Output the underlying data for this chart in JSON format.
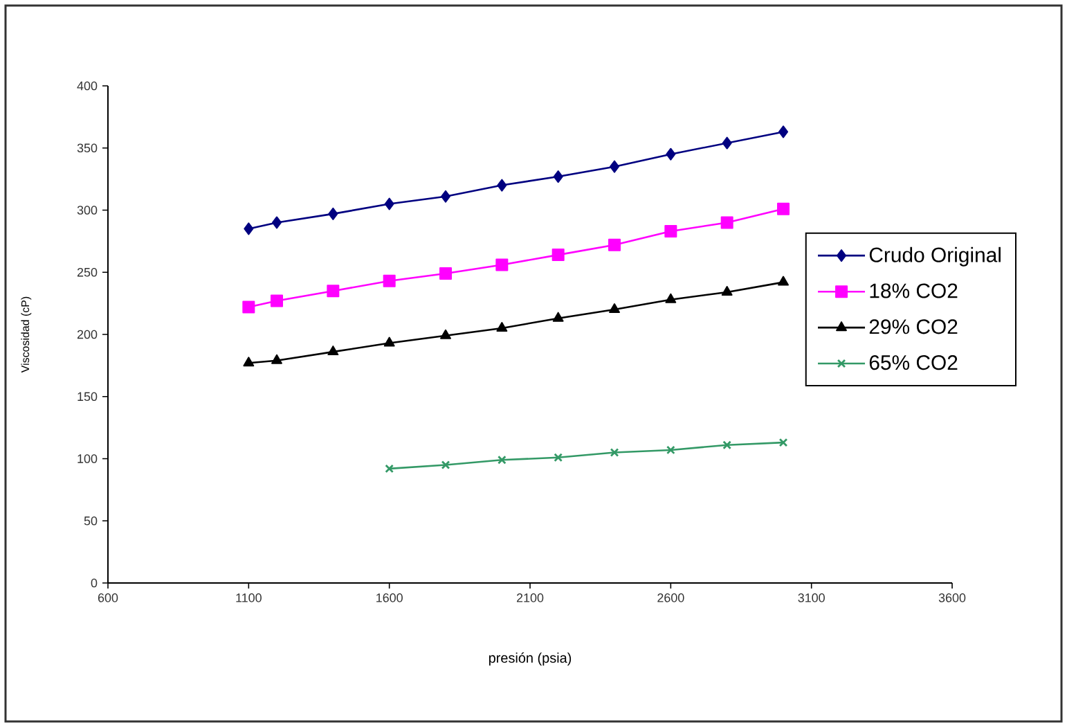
{
  "chart_data": {
    "type": "line",
    "xlabel": "presión (psia)",
    "ylabel": "Viscosidad (cP)",
    "xlim": [
      600,
      3600
    ],
    "xticks": [
      600,
      1100,
      1600,
      2100,
      2600,
      3100,
      3600
    ],
    "ylim": [
      0,
      400
    ],
    "yticks": [
      0,
      50,
      100,
      150,
      200,
      250,
      300,
      350,
      400
    ],
    "grid": false,
    "legend": "right",
    "series": [
      {
        "name": "Crudo Original",
        "color": "#000080",
        "marker": "diamond",
        "x": [
          1100,
          1200,
          1400,
          1600,
          1800,
          2000,
          2200,
          2400,
          2600,
          2800,
          3000
        ],
        "values": [
          285,
          290,
          297,
          305,
          311,
          320,
          327,
          335,
          345,
          354,
          363
        ]
      },
      {
        "name": "18% CO2",
        "color": "#ff00ff",
        "marker": "square",
        "x": [
          1100,
          1200,
          1400,
          1600,
          1800,
          2000,
          2200,
          2400,
          2600,
          2800,
          3000
        ],
        "values": [
          222,
          227,
          235,
          243,
          249,
          256,
          264,
          272,
          283,
          290,
          301
        ]
      },
      {
        "name": "29% CO2",
        "color": "#000000",
        "marker": "triangle",
        "x": [
          1100,
          1200,
          1400,
          1600,
          1800,
          2000,
          2200,
          2400,
          2600,
          2800,
          3000
        ],
        "values": [
          177,
          179,
          186,
          193,
          199,
          205,
          213,
          220,
          228,
          234,
          242
        ]
      },
      {
        "name": "65% CO2",
        "color": "#339966",
        "marker": "cross",
        "x": [
          1600,
          1800,
          2000,
          2200,
          2400,
          2600,
          2800,
          3000
        ],
        "values": [
          92,
          95,
          99,
          101,
          105,
          107,
          111,
          113
        ]
      }
    ]
  }
}
